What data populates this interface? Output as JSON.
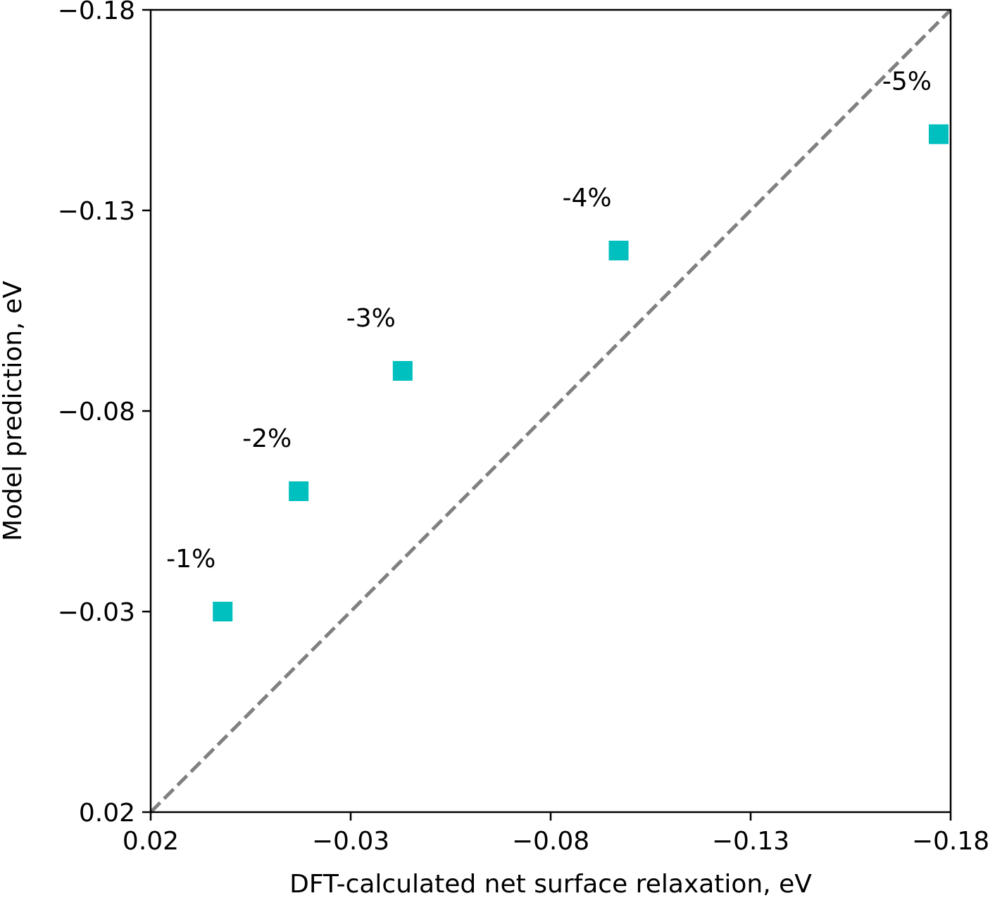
{
  "chart_data": {
    "type": "scatter",
    "title": "",
    "xlabel": "DFT-calculated net surface relaxation, eV",
    "ylabel": "Model prediction, eV",
    "xlim": [
      0.02,
      -0.18
    ],
    "ylim": [
      0.02,
      -0.18
    ],
    "x_ticks": [
      0.02,
      -0.03,
      -0.08,
      -0.13,
      -0.18
    ],
    "x_tick_labels": [
      "0.02",
      "−0.03",
      "−0.08",
      "−0.13",
      "−0.18"
    ],
    "y_ticks": [
      0.02,
      -0.03,
      -0.08,
      -0.13,
      -0.18
    ],
    "y_tick_labels": [
      "0.02",
      "−0.03",
      "−0.08",
      "−0.13",
      "−0.18"
    ],
    "grid": false,
    "legend": "none",
    "marker_color": "#00bfbf",
    "reference_line": {
      "from": [
        0.02,
        0.02
      ],
      "to": [
        -0.18,
        -0.18
      ],
      "style": "dashed",
      "color": "#808080"
    },
    "points": [
      {
        "x": 0.002,
        "y": -0.03,
        "label": "-1%"
      },
      {
        "x": -0.017,
        "y": -0.06,
        "label": "-2%"
      },
      {
        "x": -0.043,
        "y": -0.09,
        "label": "-3%"
      },
      {
        "x": -0.097,
        "y": -0.12,
        "label": "-4%"
      },
      {
        "x": -0.177,
        "y": -0.149,
        "label": "-5%"
      }
    ]
  }
}
